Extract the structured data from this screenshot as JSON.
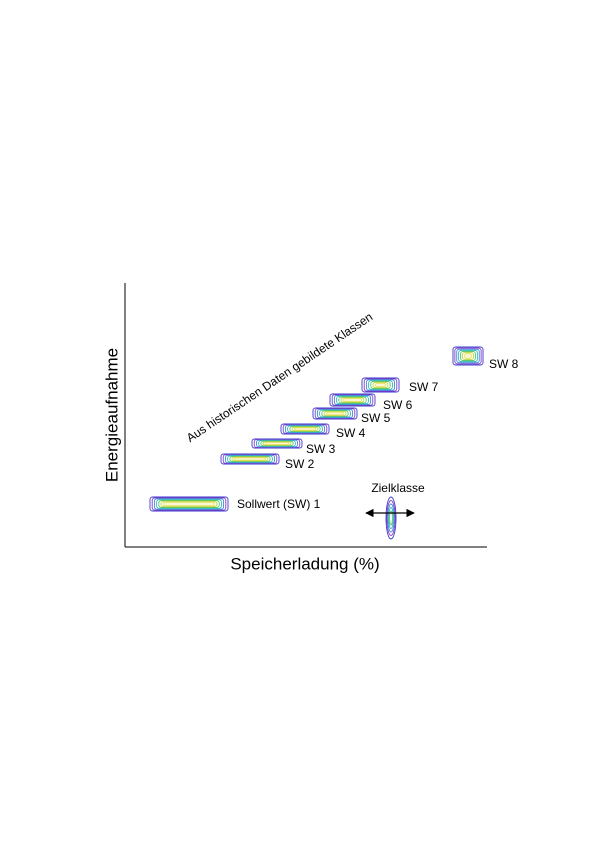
{
  "axes": {
    "x_label": "Speicherladung (%)",
    "y_label": "Energieaufnahme"
  },
  "annotation": "Aus historischen Daten gebildete Klassen",
  "clusters": [
    "Sollwert (SW) 1",
    "SW 2",
    "SW 3",
    "SW 4",
    "SW 5",
    "SW 6",
    "SW 7",
    "SW 8"
  ],
  "target": {
    "label": "Zielklasse"
  }
}
